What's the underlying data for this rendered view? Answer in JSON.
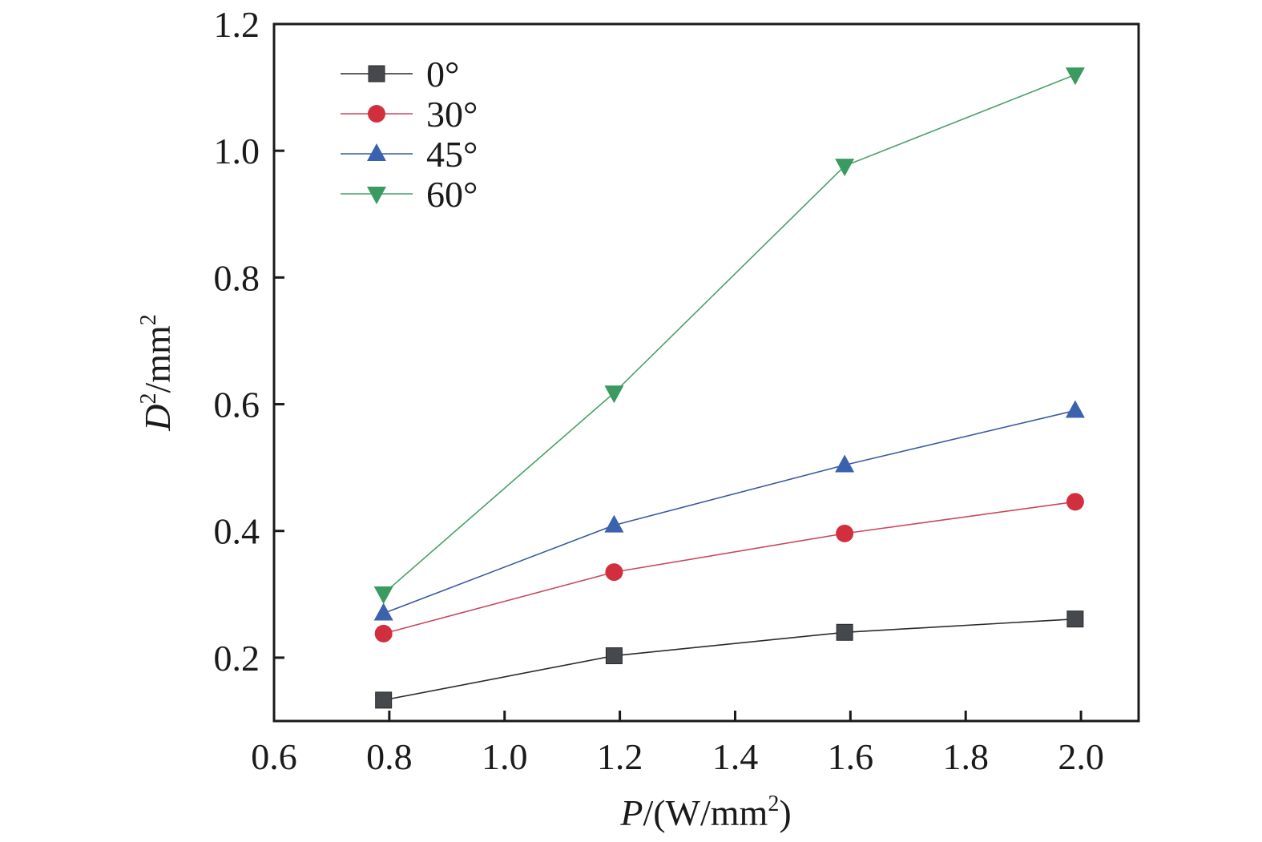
{
  "chart_data": {
    "type": "line",
    "title": "",
    "xlabel": "P/(W/mm²)",
    "xlabel_parts": {
      "var": "P",
      "unit_pre": "/(W/mm",
      "sup": "2",
      "unit_post": ")"
    },
    "ylabel": "D²/mm²",
    "ylabel_parts": {
      "var": "D",
      "sup1": "2",
      "unit": "/mm",
      "sup2": "2"
    },
    "xlim": [
      0.6,
      2.1
    ],
    "ylim": [
      0.1,
      1.2
    ],
    "xticks": [
      0.6,
      0.8,
      1.0,
      1.2,
      1.4,
      1.6,
      1.8,
      2.0
    ],
    "xtick_labels": [
      "0.6",
      "0.8",
      "1.0",
      "1.2",
      "1.4",
      "1.6",
      "1.8",
      "2.0"
    ],
    "yticks": [
      0.2,
      0.4,
      0.6,
      0.8,
      1.0,
      1.2
    ],
    "ytick_labels": [
      "0.2",
      "0.4",
      "0.6",
      "0.8",
      "1.0",
      "1.2"
    ],
    "grid": false,
    "legend_position": "top-left",
    "x": [
      0.79,
      1.19,
      1.59,
      1.99
    ],
    "series": [
      {
        "name": "0°",
        "marker": "square",
        "color": "#45484d",
        "line_color": "#2b2b2b",
        "values": [
          0.133,
          0.203,
          0.24,
          0.261
        ]
      },
      {
        "name": "30°",
        "marker": "circle",
        "color": "#d22f3e",
        "line_color": "#c84a5a",
        "values": [
          0.238,
          0.335,
          0.396,
          0.446
        ]
      },
      {
        "name": "45°",
        "marker": "triangle-up",
        "color": "#3a62ae",
        "line_color": "#3a5aa0",
        "values": [
          0.27,
          0.409,
          0.504,
          0.59
        ]
      },
      {
        "name": "60°",
        "marker": "triangle-down",
        "color": "#3a9a60",
        "line_color": "#4aa06a",
        "values": [
          0.301,
          0.618,
          0.976,
          1.12
        ]
      }
    ]
  }
}
